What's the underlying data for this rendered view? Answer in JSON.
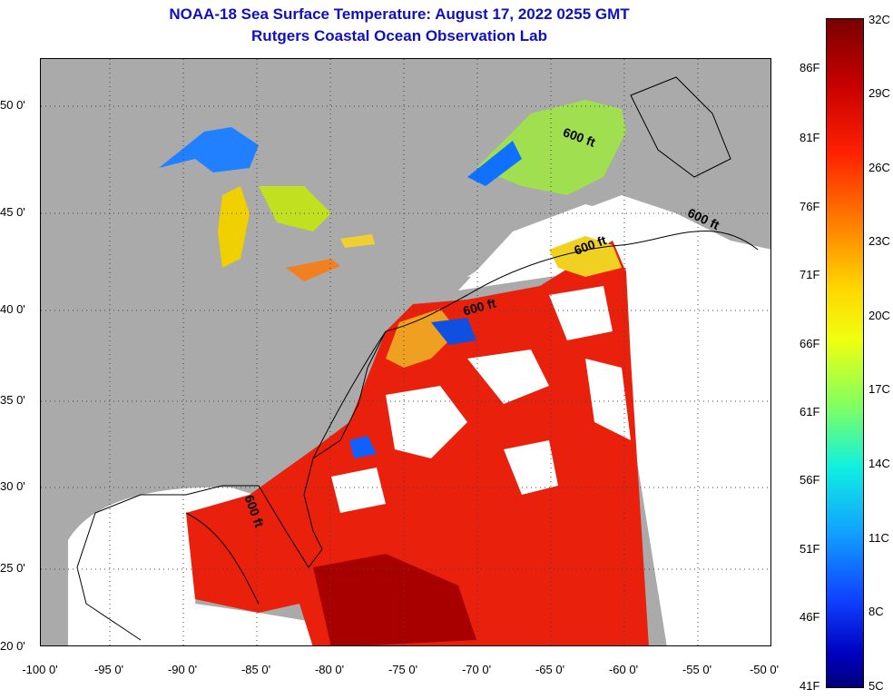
{
  "title_line1": "NOAA-18 Sea Surface Temperature:  August 17, 2022 0255 GMT",
  "title_line2": "Rutgers Coastal Ocean Observation Lab",
  "lat_ticks": [
    "50 0'",
    "45 0'",
    "40 0'",
    "35 0'",
    "30 0'",
    "25 0'",
    "20 0'"
  ],
  "lon_ticks": [
    "-100 0'",
    "-95 0'",
    "-90 0'",
    "-85 0'",
    "-80 0'",
    "-75 0'",
    "-70 0'",
    "-65 0'",
    "-60 0'",
    "-55 0'",
    "-50 0'"
  ],
  "colorbar_f": [
    "86F",
    "81F",
    "76F",
    "71F",
    "66F",
    "61F",
    "56F",
    "51F",
    "46F",
    "41F"
  ],
  "colorbar_c": [
    "32C",
    "29C",
    "26C",
    "23C",
    "20C",
    "17C",
    "14C",
    "11C",
    "8C",
    "5C"
  ],
  "contour_labels": [
    "600 ft",
    "600 ft",
    "600 ft",
    "600 ft",
    "600 ft"
  ],
  "colors": {
    "title": "#1010c0",
    "land": "#aaaaaa",
    "cloud": "#ffffff",
    "warm_sst": "#e8200c"
  }
}
